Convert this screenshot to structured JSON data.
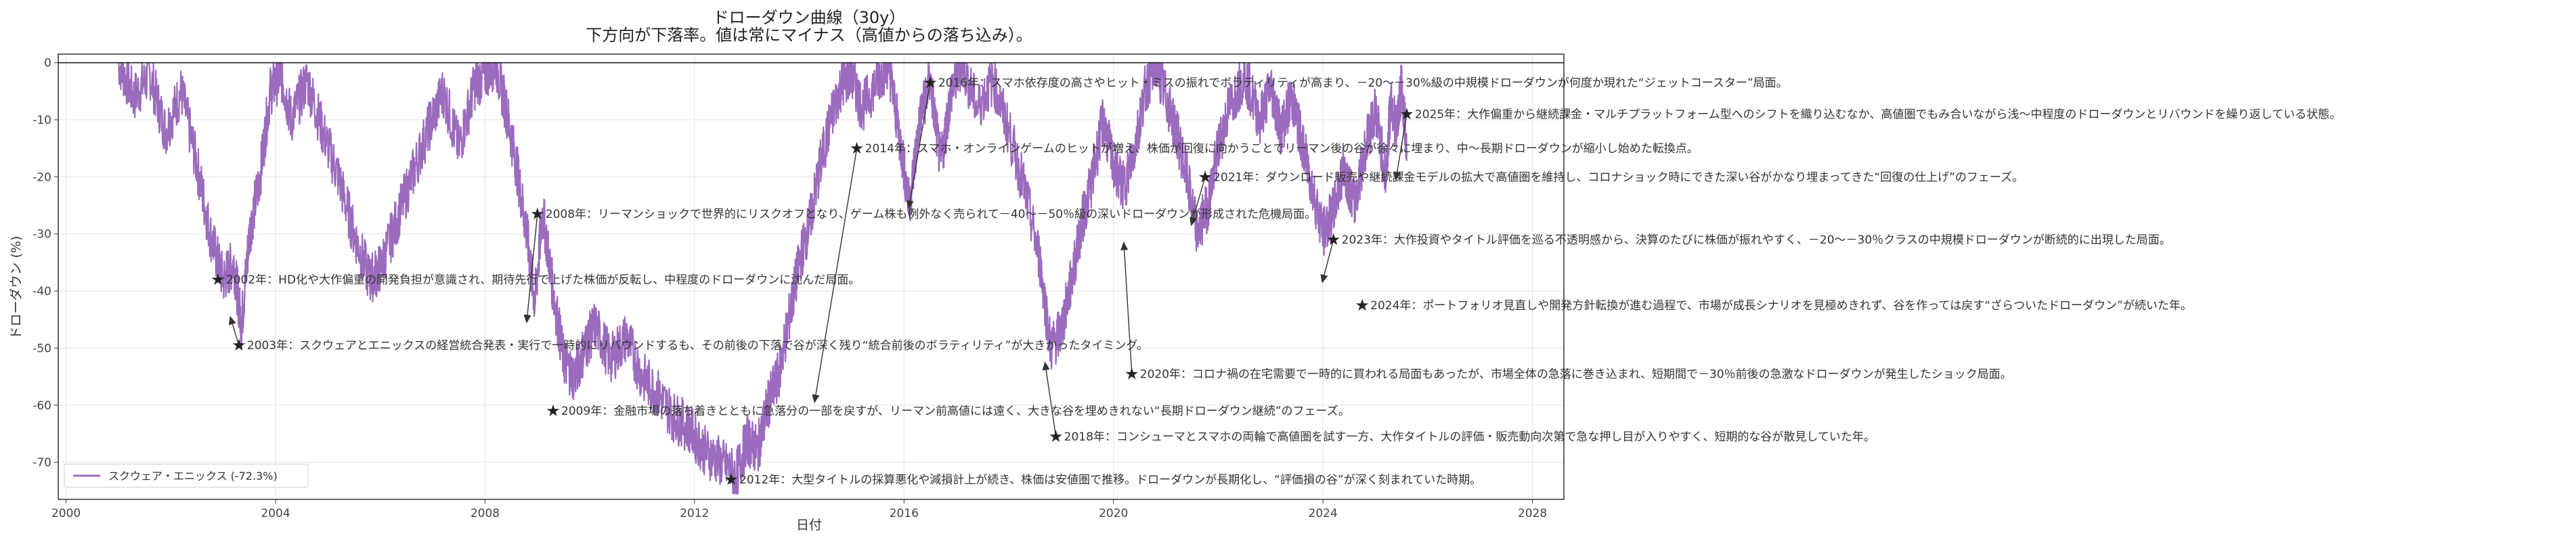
{
  "chart_data": {
    "type": "line",
    "title": "ドローダウン曲線（30y）",
    "subtitle": "下方向が下落率。値は常にマイナス（高値からの落ち込み）。",
    "xlabel": "日付",
    "ylabel": "ドローダウン (%)",
    "xlim": [
      1999.85,
      2028.6
    ],
    "ylim": [
      -76.5,
      1.5
    ],
    "x_ticks": [
      2000,
      2004,
      2008,
      2012,
      2016,
      2020,
      2024,
      2028
    ],
    "y_ticks": [
      0,
      -10,
      -20,
      -30,
      -40,
      -50,
      -60,
      -70
    ],
    "grid": true,
    "legend_position": "lower-left",
    "series": [
      {
        "name": "スクウェア・エニックス (-72.3%)",
        "color": "#9b6bbd",
        "points": [
          [
            2001.0,
            0
          ],
          [
            2001.3,
            -6
          ],
          [
            2001.6,
            -2
          ],
          [
            2001.9,
            -12
          ],
          [
            2002.2,
            -5
          ],
          [
            2002.5,
            -18
          ],
          [
            2002.75,
            -30
          ],
          [
            2003.0,
            -38
          ],
          [
            2003.2,
            -35
          ],
          [
            2003.35,
            -46
          ],
          [
            2003.5,
            -30
          ],
          [
            2003.7,
            -20
          ],
          [
            2003.9,
            -5
          ],
          [
            2004.1,
            -2
          ],
          [
            2004.3,
            -10
          ],
          [
            2004.6,
            -3
          ],
          [
            2004.9,
            -12
          ],
          [
            2005.2,
            -20
          ],
          [
            2005.5,
            -30
          ],
          [
            2005.8,
            -38
          ],
          [
            2006.0,
            -36
          ],
          [
            2006.3,
            -28
          ],
          [
            2006.6,
            -20
          ],
          [
            2006.9,
            -12
          ],
          [
            2007.2,
            -5
          ],
          [
            2007.5,
            -15
          ],
          [
            2007.8,
            -4
          ],
          [
            2008.0,
            -2
          ],
          [
            2008.2,
            0
          ],
          [
            2008.4,
            -8
          ],
          [
            2008.6,
            -18
          ],
          [
            2008.8,
            -30
          ],
          [
            2008.95,
            -42
          ],
          [
            2009.1,
            -26
          ],
          [
            2009.3,
            -40
          ],
          [
            2009.5,
            -52
          ],
          [
            2009.7,
            -55
          ],
          [
            2009.9,
            -50
          ],
          [
            2010.1,
            -46
          ],
          [
            2010.4,
            -52
          ],
          [
            2010.7,
            -48
          ],
          [
            2011.0,
            -55
          ],
          [
            2011.3,
            -58
          ],
          [
            2011.6,
            -62
          ],
          [
            2011.9,
            -64
          ],
          [
            2012.2,
            -68
          ],
          [
            2012.5,
            -70
          ],
          [
            2012.8,
            -72.3
          ],
          [
            2013.0,
            -66
          ],
          [
            2013.2,
            -68
          ],
          [
            2013.4,
            -60
          ],
          [
            2013.6,
            -55
          ],
          [
            2013.8,
            -45
          ],
          [
            2014.0,
            -35
          ],
          [
            2014.2,
            -28
          ],
          [
            2014.4,
            -18
          ],
          [
            2014.6,
            -10
          ],
          [
            2014.8,
            -4
          ],
          [
            2015.0,
            -2
          ],
          [
            2015.2,
            -8
          ],
          [
            2015.5,
            -3
          ],
          [
            2015.7,
            0
          ],
          [
            2015.9,
            -12
          ],
          [
            2016.1,
            -25
          ],
          [
            2016.3,
            -10
          ],
          [
            2016.5,
            -3
          ],
          [
            2016.7,
            -18
          ],
          [
            2016.9,
            -5
          ],
          [
            2017.1,
            0
          ],
          [
            2017.4,
            -8
          ],
          [
            2017.7,
            -3
          ],
          [
            2018.0,
            -12
          ],
          [
            2018.3,
            -22
          ],
          [
            2018.6,
            -35
          ],
          [
            2018.8,
            -50
          ],
          [
            2019.0,
            -47
          ],
          [
            2019.2,
            -38
          ],
          [
            2019.4,
            -28
          ],
          [
            2019.6,
            -20
          ],
          [
            2019.8,
            -10
          ],
          [
            2020.0,
            -18
          ],
          [
            2020.2,
            -22
          ],
          [
            2020.4,
            -15
          ],
          [
            2020.6,
            -5
          ],
          [
            2020.8,
            0
          ],
          [
            2021.0,
            -6
          ],
          [
            2021.2,
            -12
          ],
          [
            2021.4,
            -20
          ],
          [
            2021.6,
            -30
          ],
          [
            2021.8,
            -25
          ],
          [
            2022.0,
            -15
          ],
          [
            2022.2,
            -8
          ],
          [
            2022.5,
            -2
          ],
          [
            2022.8,
            -10
          ],
          [
            2023.0,
            -4
          ],
          [
            2023.2,
            -12
          ],
          [
            2023.4,
            -6
          ],
          [
            2023.6,
            -14
          ],
          [
            2023.8,
            -22
          ],
          [
            2024.0,
            -30
          ],
          [
            2024.2,
            -26
          ],
          [
            2024.4,
            -18
          ],
          [
            2024.6,
            -25
          ],
          [
            2024.8,
            -15
          ],
          [
            2025.0,
            -8
          ],
          [
            2025.2,
            -20
          ],
          [
            2025.3,
            -6
          ],
          [
            2025.4,
            -12
          ],
          [
            2025.5,
            -4
          ],
          [
            2025.6,
            -15
          ]
        ]
      }
    ],
    "annotations": [
      {
        "text": "2002年：HD化や大作偏重の開発負担が意識され、期待先行で上げた株価が反転し、中程度のドローダウンに沈んだ局面。",
        "x": 2002.9,
        "y": -38
      },
      {
        "text": "2003年：スクウェアとエニックスの経営統合発表・実行で一時的にリバウンドするも、その前後の下落で谷が深く残り“統合前後のボラティリティ”が大きかったタイミング。",
        "x": 2003.3,
        "y": -49.5,
        "arrow_to": [
          2003.15,
          -45
        ]
      },
      {
        "text": "2008年：リーマンショックで世界的にリスクオフとなり、ゲーム株も例外なく売られて－40～－50％級の深いドローダウンが形成された危機局面。",
        "x": 2009.0,
        "y": -26.5,
        "arrow_to": [
          2008.8,
          -45
        ]
      },
      {
        "text": "2009年：金融市場の落ち着きとともに急落分の一部を戻すが、リーマン前高値には遠く、大きな谷を埋めきれない“長期ドローダウン継続”のフェーズ。",
        "x": 2009.3,
        "y": -61
      },
      {
        "text": "2012年：大型タイトルの採算悪化や減損計上が続き、株価は安値圏で推移。ドローダウンが長期化し、“評価損の谷”が深く刻まれていた時期。",
        "x": 2012.7,
        "y": -73
      },
      {
        "text": "2014年：スマホ・オンラインゲームのヒットが増え、株価が回復に向かうことでリーマン後の谷が徐々に埋まり、中～長期ドローダウンが縮小し始めた転換点。",
        "x": 2015.1,
        "y": -15,
        "arrow_to": [
          2014.3,
          -59
        ]
      },
      {
        "text": "2016年：スマホ依存度の高さやヒット・ミスの振れでボラティリティが高まり、－20～－30%級の中規模ドローダウンが何度か現れた“ジェットコースター”局面。",
        "x": 2016.5,
        "y": -3.5,
        "arrow_to": [
          2016.1,
          -25
        ]
      },
      {
        "text": "2018年：コンシューマとスマホの両輪で高値圏を試す一方、大作タイトルの評価・販売動向次第で急な押し目が入りやすく、短期的な谷が散見していた年。",
        "x": 2018.9,
        "y": -65.5,
        "arrow_to": [
          2018.7,
          -53
        ]
      },
      {
        "text": "2020年：コロナ禍の在宅需要で一時的に買われる局面もあったが、市場全体の急落に巻き込まれ、短期間で－30％前後の急激なドローダウンが発生したショック局面。",
        "x": 2020.35,
        "y": -54.5,
        "arrow_to": [
          2020.2,
          -32
        ]
      },
      {
        "text": "2021年：ダウンロード販売や継続課金モデルの拡大で高値圏を維持し、コロナショック時にできた深い谷がかなり埋まってきた“回復の仕上げ”のフェーズ。",
        "x": 2021.75,
        "y": -20,
        "arrow_to": [
          2021.5,
          -28
        ]
      },
      {
        "text": "2023年：大作投資やタイトル評価を巡る不透明感から、決算のたびに株価が振れやすく、－20～－30％クラスの中規模ドローダウンが断続的に出現した局面。",
        "x": 2024.2,
        "y": -31,
        "arrow_to": [
          2024.0,
          -38
        ]
      },
      {
        "text": "2024年：ポートフォリオ見直しや開発方針転換が進む過程で、市場が成長シナリオを見極めきれず、谷を作っては戻す“ざらついたドローダウン”が続いた年。",
        "x": 2024.75,
        "y": -42.5
      },
      {
        "text": "2025年：大作偏重から継続課金・マルチプラットフォーム型へのシフトを織り込むなか、高値圏でもみ合いながら浅～中程度のドローダウンとリバウンドを繰り返している状態。",
        "x": 2025.6,
        "y": -9,
        "arrow_to": [
          2025.4,
          -20
        ]
      }
    ]
  }
}
